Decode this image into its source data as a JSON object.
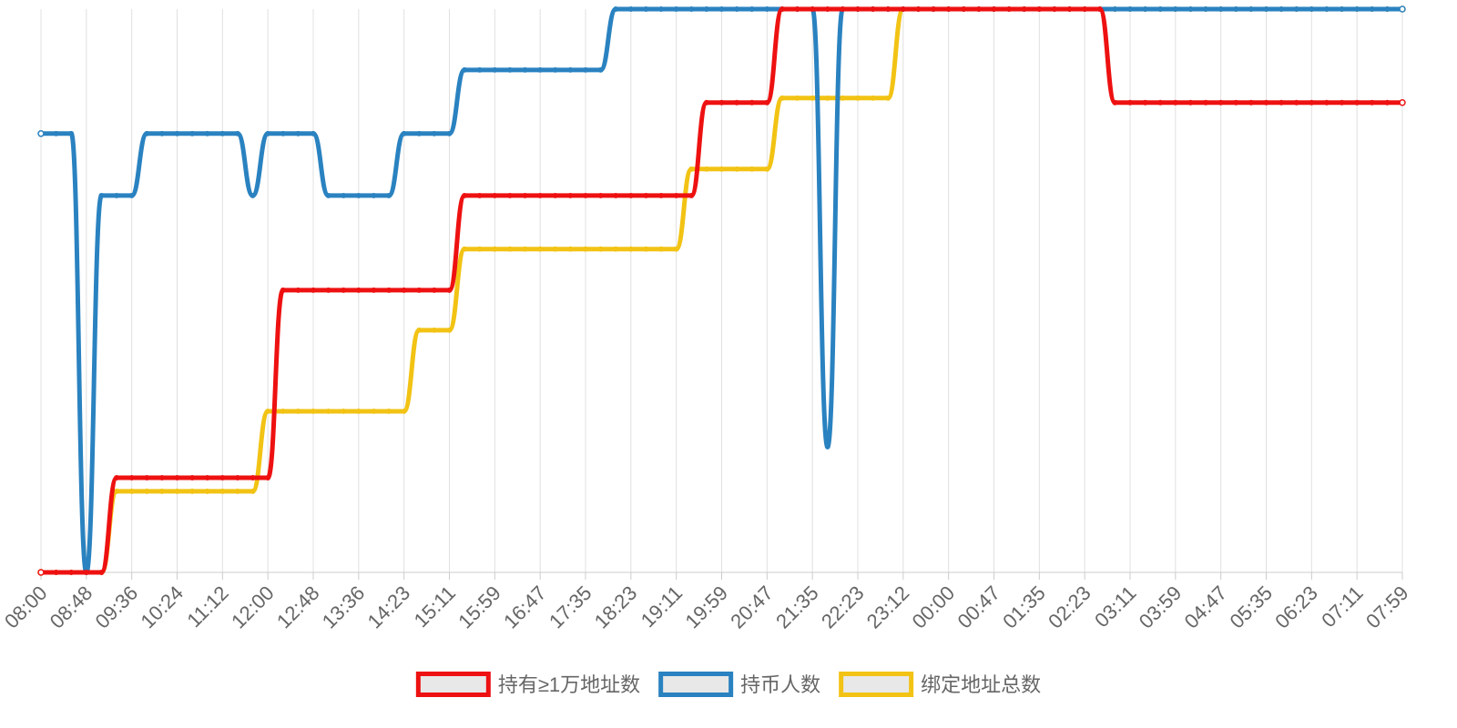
{
  "chart_data": {
    "type": "line",
    "categories": [
      "08:00",
      null,
      null,
      "08:48",
      null,
      null,
      "09:36",
      null,
      null,
      "10:24",
      null,
      null,
      "11:12",
      null,
      null,
      "12:00",
      null,
      null,
      "12:48",
      null,
      null,
      "13:36",
      null,
      null,
      "14:23",
      null,
      null,
      "15:11",
      null,
      null,
      "15:59",
      null,
      null,
      "16:47",
      null,
      null,
      "17:35",
      null,
      null,
      "18:23",
      null,
      null,
      "19:11",
      null,
      null,
      "19:59",
      null,
      null,
      "20:47",
      null,
      null,
      "21:35",
      null,
      null,
      "22:23",
      null,
      null,
      "23:12",
      null,
      null,
      "00:00",
      null,
      null,
      "00:47",
      null,
      null,
      "01:35",
      null,
      null,
      "02:23",
      null,
      null,
      "03:11",
      null,
      null,
      "03:59",
      null,
      null,
      "04:47",
      null,
      null,
      "05:35",
      null,
      null,
      "06:23",
      null,
      null,
      "07:11",
      null,
      null,
      "07:59"
    ],
    "series": [
      {
        "name": "持有≥1万地址数",
        "color": "#ee1111",
        "values": [
          0,
          0,
          0,
          0,
          0,
          16.8,
          16.8,
          16.8,
          16.8,
          16.8,
          16.8,
          16.8,
          16.8,
          16.8,
          16.8,
          16.8,
          50.1,
          50.1,
          50.1,
          50.1,
          50.1,
          50.1,
          50.1,
          50.1,
          50.1,
          50.1,
          50.1,
          50.1,
          66.9,
          66.9,
          66.9,
          66.9,
          66.9,
          66.9,
          66.9,
          66.9,
          66.9,
          66.9,
          66.9,
          66.9,
          66.9,
          66.9,
          66.9,
          66.9,
          83.4,
          83.4,
          83.4,
          83.4,
          83.4,
          100,
          100,
          100,
          100,
          100,
          100,
          100,
          100,
          100,
          100,
          100,
          100,
          100,
          100,
          100,
          100,
          100,
          100,
          100,
          100,
          100,
          100,
          83.4,
          83.4,
          83.4,
          83.4,
          83.4,
          83.4,
          83.4,
          83.4,
          83.4,
          83.4,
          83.4,
          83.4,
          83.4,
          83.4,
          83.4,
          83.4,
          83.4,
          83.4,
          83.4,
          83.4
        ]
      },
      {
        "name": "持币人数",
        "color": "#2a82c0",
        "values": [
          77.9,
          77.9,
          77.9,
          0,
          66.9,
          66.9,
          66.9,
          77.9,
          77.9,
          77.9,
          77.9,
          77.9,
          77.9,
          77.9,
          66.9,
          77.9,
          77.9,
          77.9,
          77.9,
          66.9,
          66.9,
          66.9,
          66.9,
          66.9,
          77.9,
          77.9,
          77.9,
          77.9,
          89.2,
          89.2,
          89.2,
          89.2,
          89.2,
          89.2,
          89.2,
          89.2,
          89.2,
          89.2,
          100,
          100,
          100,
          100,
          100,
          100,
          100,
          100,
          100,
          100,
          100,
          100,
          100,
          100,
          22.3,
          100,
          100,
          100,
          100,
          100,
          100,
          100,
          100,
          100,
          100,
          100,
          100,
          100,
          100,
          100,
          100,
          100,
          100,
          100,
          100,
          100,
          100,
          100,
          100,
          100,
          100,
          100,
          100,
          100,
          100,
          100,
          100,
          100,
          100,
          100,
          100,
          100,
          100
        ]
      },
      {
        "name": "绑定地址总数",
        "color": "#f2c314",
        "values": [
          0,
          0,
          0,
          0,
          0,
          14.4,
          14.4,
          14.4,
          14.4,
          14.4,
          14.4,
          14.4,
          14.4,
          14.4,
          14.4,
          28.6,
          28.6,
          28.6,
          28.6,
          28.6,
          28.6,
          28.6,
          28.6,
          28.6,
          28.6,
          43,
          43,
          43,
          57.4,
          57.4,
          57.4,
          57.4,
          57.4,
          57.4,
          57.4,
          57.4,
          57.4,
          57.4,
          57.4,
          57.4,
          57.4,
          57.4,
          57.4,
          71.6,
          71.6,
          71.6,
          71.6,
          71.6,
          71.6,
          84.2,
          84.2,
          84.2,
          84.2,
          84.2,
          84.2,
          84.2,
          84.2,
          100,
          100,
          100,
          100,
          100,
          100,
          100,
          100,
          100,
          100,
          100,
          100,
          100,
          100,
          100,
          100,
          100,
          100,
          100,
          100,
          100,
          100,
          100,
          100,
          100,
          100,
          100,
          100,
          100,
          100,
          100,
          100,
          100,
          100
        ]
      }
    ],
    "ylim": [
      0,
      100
    ],
    "grid": true,
    "legend": "bottom"
  }
}
